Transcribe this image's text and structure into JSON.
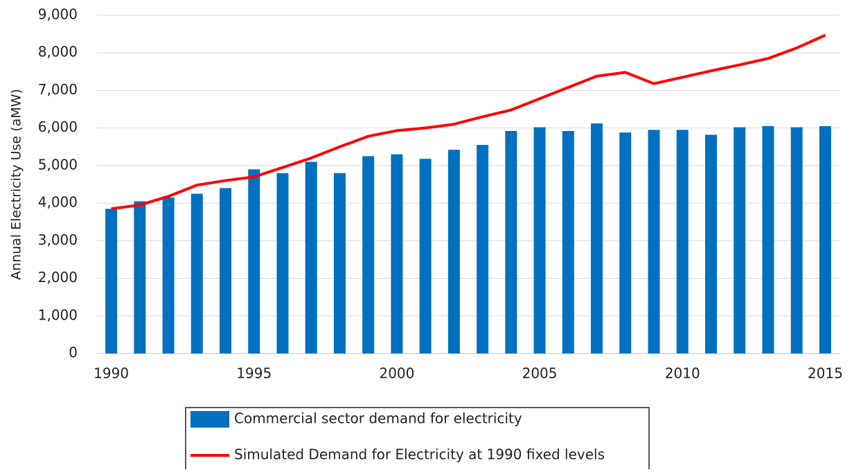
{
  "chart_data": {
    "type": "bar",
    "y_label": "Annual Electricity Use (aMW)",
    "x": [
      1990,
      1991,
      1992,
      1993,
      1994,
      1995,
      1996,
      1997,
      1998,
      1999,
      2000,
      2001,
      2002,
      2003,
      2004,
      2005,
      2006,
      2007,
      2008,
      2009,
      2010,
      2011,
      2012,
      2013,
      2014,
      2015
    ],
    "xlim": [
      1989.5,
      2015.5
    ],
    "xticks": [
      1990,
      1995,
      2000,
      2005,
      2010,
      2015
    ],
    "ylim": [
      0,
      9000
    ],
    "yticks": [
      0,
      {
        "value": 1000,
        "label": "1,000"
      },
      {
        "value": 2000,
        "label": "2,000"
      },
      {
        "value": 3000,
        "label": "3,000"
      },
      {
        "value": 4000,
        "label": "4,000"
      },
      {
        "value": 5000,
        "label": "5,000"
      },
      {
        "value": 6000,
        "label": "6,000"
      },
      {
        "value": 7000,
        "label": "7,000"
      },
      {
        "value": 8000,
        "label": "8,000"
      },
      {
        "value": 9000,
        "label": "9,000"
      }
    ],
    "grid": true,
    "legend": "bottom",
    "series": [
      {
        "name": "Commercial sector demand for electricity",
        "type": "bar",
        "color": "#0070c0",
        "values": [
          3850,
          4050,
          4150,
          4250,
          4400,
          4900,
          4800,
          5100,
          4800,
          5250,
          5300,
          5180,
          5420,
          5550,
          5920,
          6020,
          5920,
          6120,
          5880,
          5950,
          5950,
          5820,
          6020,
          6050,
          6020,
          6050
        ]
      },
      {
        "name": "Simulated Demand for Electricity at 1990 fixed levels",
        "type": "line",
        "color": "#ff0000",
        "values": [
          3850,
          3950,
          4180,
          4480,
          4600,
          4700,
          4950,
          5200,
          5500,
          5780,
          5930,
          6000,
          6100,
          6300,
          6480,
          6780,
          7080,
          7380,
          7480,
          7180,
          7350,
          7520,
          7680,
          7850,
          8130,
          8470
        ]
      }
    ]
  }
}
